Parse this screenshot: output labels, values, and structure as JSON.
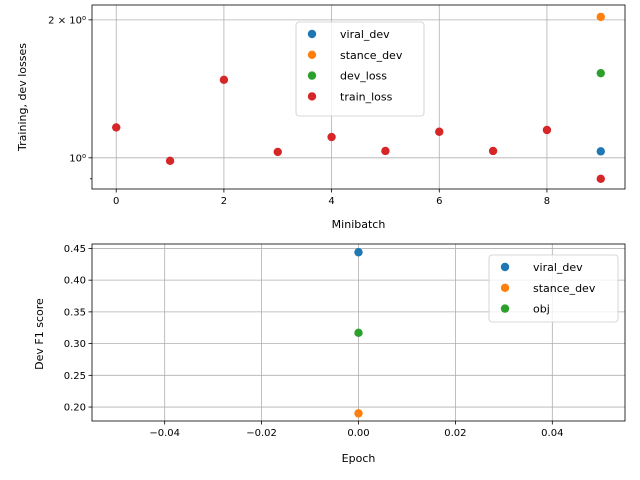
{
  "chart_data": [
    {
      "type": "scatter",
      "yscale": "log",
      "xlabel": "Minibatch",
      "ylabel": "Training, dev losses",
      "xlim": [
        -0.45,
        9.45
      ],
      "ylim": [
        0.855,
        2.155
      ],
      "x_ticks": [
        0,
        2,
        4,
        6,
        8
      ],
      "x_tick_labels": [
        "0",
        "2",
        "4",
        "6",
        "8"
      ],
      "y_major_ticks": [
        1,
        2
      ],
      "y_minor_ticks": [
        0.9
      ],
      "y_tick_labels": [
        "10⁰",
        "2 × 10⁰"
      ],
      "grid": true,
      "legend_position": "top-center",
      "series": [
        {
          "name": "viral_dev",
          "color": "#1f77b4",
          "points": [
            [
              9,
              1.033
            ]
          ]
        },
        {
          "name": "stance_dev",
          "color": "#ff7f0e",
          "points": [
            [
              9,
              2.03
            ]
          ]
        },
        {
          "name": "dev_loss",
          "color": "#2ca02c",
          "points": [
            [
              9,
              1.53
            ]
          ]
        },
        {
          "name": "train_loss",
          "color": "#d62728",
          "points": [
            [
              0,
              1.165
            ],
            [
              1,
              0.985
            ],
            [
              2,
              1.48
            ],
            [
              3,
              1.03
            ],
            [
              4,
              1.11
            ],
            [
              5,
              1.035
            ],
            [
              6,
              1.14
            ],
            [
              7,
              1.035
            ],
            [
              8,
              1.15
            ],
            [
              9,
              0.9
            ]
          ]
        }
      ]
    },
    {
      "type": "scatter",
      "xlabel": "Epoch",
      "ylabel": "Dev F1 score",
      "xlim": [
        -0.055,
        0.055
      ],
      "ylim": [
        0.178,
        0.457
      ],
      "x_ticks": [
        -0.04,
        -0.02,
        0.0,
        0.02,
        0.04
      ],
      "x_tick_labels": [
        "−0.04",
        "−0.02",
        "0.00",
        "0.02",
        "0.04"
      ],
      "y_ticks": [
        0.2,
        0.25,
        0.3,
        0.35,
        0.4,
        0.45
      ],
      "y_tick_labels": [
        "0.20",
        "0.25",
        "0.30",
        "0.35",
        "0.40",
        "0.45"
      ],
      "grid": true,
      "legend_position": "top-right",
      "series": [
        {
          "name": "viral_dev",
          "color": "#1f77b4",
          "points": [
            [
              0,
              0.444
            ]
          ]
        },
        {
          "name": "stance_dev",
          "color": "#ff7f0e",
          "points": [
            [
              0,
              0.19
            ]
          ]
        },
        {
          "name": "obj",
          "color": "#2ca02c",
          "points": [
            [
              0,
              0.317
            ]
          ]
        }
      ]
    }
  ]
}
